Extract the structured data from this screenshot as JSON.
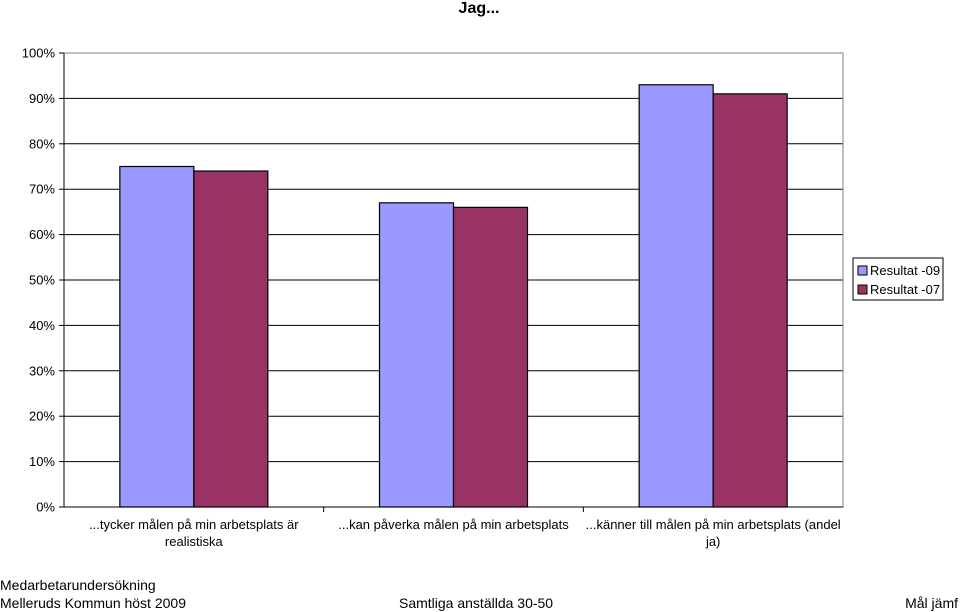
{
  "chart_data": {
    "type": "bar",
    "title": "Jag...",
    "categories": [
      [
        "...tycker målen på min arbetsplats är",
        "realistiska"
      ],
      [
        "...kan påverka målen på min arbetsplats"
      ],
      [
        "...känner till målen på min arbetsplats (andel",
        "ja)"
      ]
    ],
    "series": [
      {
        "name": "Resultat -09",
        "color": "#9999FF",
        "values": [
          75,
          67,
          93
        ]
      },
      {
        "name": "Resultat -07",
        "color": "#993366",
        "values": [
          74,
          66,
          91
        ]
      }
    ],
    "ylim": [
      0,
      100
    ],
    "yticks": [
      "0%",
      "10%",
      "20%",
      "30%",
      "40%",
      "50%",
      "60%",
      "70%",
      "80%",
      "90%",
      "100%"
    ],
    "grid": true,
    "legend_position": "right"
  },
  "footer": {
    "line1": "Medarbetarundersökning",
    "line2": "Melleruds Kommun höst 2009",
    "center": "Samtliga anställda 30-50",
    "right": "Mål jämf"
  }
}
